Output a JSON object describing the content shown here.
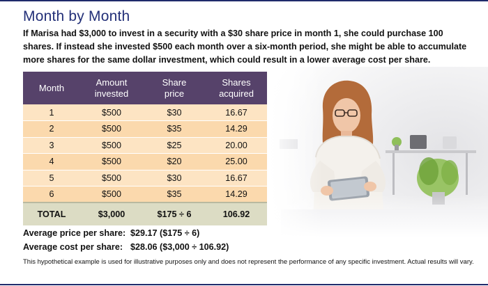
{
  "title": "Month by Month",
  "intro": "If Marisa had $3,000 to invest in a security with a $30 share price in month 1, she could purchase 100 shares. If instead she invested $500 each month over a six-month period, she might be able to accumulate more shares for the same dollar investment, which could result in a lower average cost per share.",
  "table": {
    "headers": {
      "month": "Month",
      "amount_l1": "Amount",
      "amount_l2": "invested",
      "price_l1": "Share",
      "price_l2": "price",
      "shares_l1": "Shares",
      "shares_l2": "acquired"
    },
    "rows": [
      {
        "month": "1",
        "amount": "$500",
        "price": "$30",
        "shares": "16.67"
      },
      {
        "month": "2",
        "amount": "$500",
        "price": "$35",
        "shares": "14.29"
      },
      {
        "month": "3",
        "amount": "$500",
        "price": "$25",
        "shares": "20.00"
      },
      {
        "month": "4",
        "amount": "$500",
        "price": "$20",
        "shares": "25.00"
      },
      {
        "month": "5",
        "amount": "$500",
        "price": "$30",
        "shares": "16.67"
      },
      {
        "month": "6",
        "amount": "$500",
        "price": "$35",
        "shares": "14.29"
      }
    ],
    "total": {
      "label": "TOTAL",
      "amount": "$3,000",
      "price": "$175 ÷ 6",
      "shares": "106.92"
    }
  },
  "summary": {
    "avg_price_label": "Average price per share:",
    "avg_price_value": "$29.17 ($175 ÷ 6)",
    "avg_cost_label": "Average cost per share:",
    "avg_cost_value": "$28.06 ($3,000 ÷ 106.92)"
  },
  "disclaimer": "This hypothetical example is used for illustrative purposes only and does not represent the performance of any specific investment. Actual results will vary.",
  "colors": {
    "title": "#233078",
    "header_bg": "#56426a",
    "row_odd": "#fde4c3",
    "row_even": "#fbd9ad",
    "total_bg": "#dcdcc4",
    "rule": "#1f2a6b"
  }
}
